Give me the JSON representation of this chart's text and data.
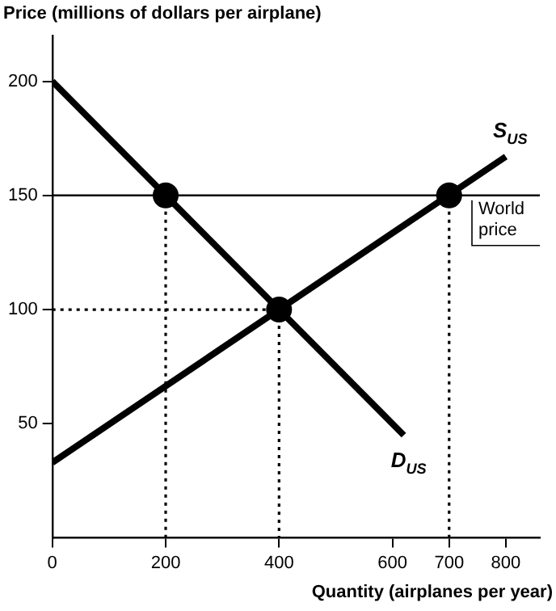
{
  "chart_data": {
    "type": "line",
    "xlabel": "Quantity (airplanes per year)",
    "ylabel": "Price (millions of dollars per airplane)",
    "xlim": [
      0,
      860
    ],
    "ylim": [
      0,
      220
    ],
    "xticks": [
      0,
      200,
      400,
      600,
      700,
      800
    ],
    "yticks": [
      50,
      100,
      150,
      200
    ],
    "grid": false,
    "legend": false,
    "marker": "none",
    "line_style": "solid",
    "ref_lines": [
      {
        "axis": "y",
        "value": 150,
        "label": "World price",
        "color": "#000000"
      }
    ],
    "series": [
      {
        "name": "S$_{US}$",
        "color": "#000000",
        "x": [
          0,
          800
        ],
        "values": [
          33,
          167
        ]
      },
      {
        "name": "D$_{US}$",
        "color": "#000000",
        "x": [
          0,
          620
        ],
        "values": [
          200,
          45
        ]
      },
      {
        "color": "#000000",
        "x": [
          200,
          200
        ],
        "values": [
          150,
          0
        ],
        "line_style": "dotted"
      },
      {
        "color": "#000000",
        "x": [
          400,
          400
        ],
        "values": [
          100,
          0
        ],
        "line_style": "dotted"
      },
      {
        "color": "#000000",
        "x": [
          700,
          700
        ],
        "values": [
          150,
          0
        ],
        "line_style": "dotted"
      },
      {
        "color": "#000000",
        "x": [
          0,
          400
        ],
        "values": [
          100,
          100
        ],
        "line_style": "dotted"
      },
      {
        "type": "scatter",
        "color": "#000000",
        "x": [
          200,
          400,
          700
        ],
        "values": [
          150,
          100,
          150
        ],
        "marker": "circle"
      }
    ]
  }
}
